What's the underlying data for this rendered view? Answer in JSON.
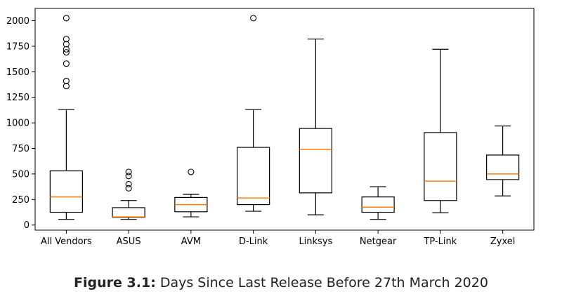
{
  "chart_data": {
    "type": "boxplot",
    "categories": [
      "All Vendors",
      "ASUS",
      "AVM",
      "D-Link",
      "Linksys",
      "Netgear",
      "TP-Link",
      "Zyxel"
    ],
    "yticks": [
      0,
      250,
      500,
      750,
      1000,
      1250,
      1500,
      1750,
      2000
    ],
    "ylim": [
      -50,
      2120
    ],
    "xlabel": "",
    "ylabel": "",
    "title": "",
    "grid": false,
    "colors": {
      "box": "#000000",
      "median": "#ff7f0e",
      "flier": "#000000"
    },
    "boxes": [
      {
        "name": "All Vendors",
        "whisker_low": 55,
        "q1": 125,
        "median": 275,
        "q3": 530,
        "whisker_high": 1130,
        "fliers": [
          1360,
          1410,
          1580,
          1690,
          1720,
          1770,
          1820,
          2025
        ]
      },
      {
        "name": "ASUS",
        "whisker_low": 55,
        "q1": 75,
        "median": 80,
        "q3": 170,
        "whisker_high": 240,
        "fliers": [
          360,
          400,
          480,
          520
        ]
      },
      {
        "name": "AVM",
        "whisker_low": 80,
        "q1": 130,
        "median": 200,
        "q3": 270,
        "whisker_high": 300,
        "fliers": [
          520
        ]
      },
      {
        "name": "D-Link",
        "whisker_low": 135,
        "q1": 200,
        "median": 265,
        "q3": 760,
        "whisker_high": 1130,
        "fliers": [
          2025
        ]
      },
      {
        "name": "Linksys",
        "whisker_low": 100,
        "q1": 315,
        "median": 740,
        "q3": 945,
        "whisker_high": 1820,
        "fliers": []
      },
      {
        "name": "Netgear",
        "whisker_low": 55,
        "q1": 125,
        "median": 175,
        "q3": 275,
        "whisker_high": 375,
        "fliers": []
      },
      {
        "name": "TP-Link",
        "whisker_low": 120,
        "q1": 240,
        "median": 430,
        "q3": 905,
        "whisker_high": 1720,
        "fliers": []
      },
      {
        "name": "Zyxel",
        "whisker_low": 285,
        "q1": 445,
        "median": 500,
        "q3": 685,
        "whisker_high": 970,
        "fliers": []
      }
    ]
  },
  "caption": {
    "label": "Figure 3.1:",
    "text": " Days Since Last Release Before 27th March 2020"
  }
}
